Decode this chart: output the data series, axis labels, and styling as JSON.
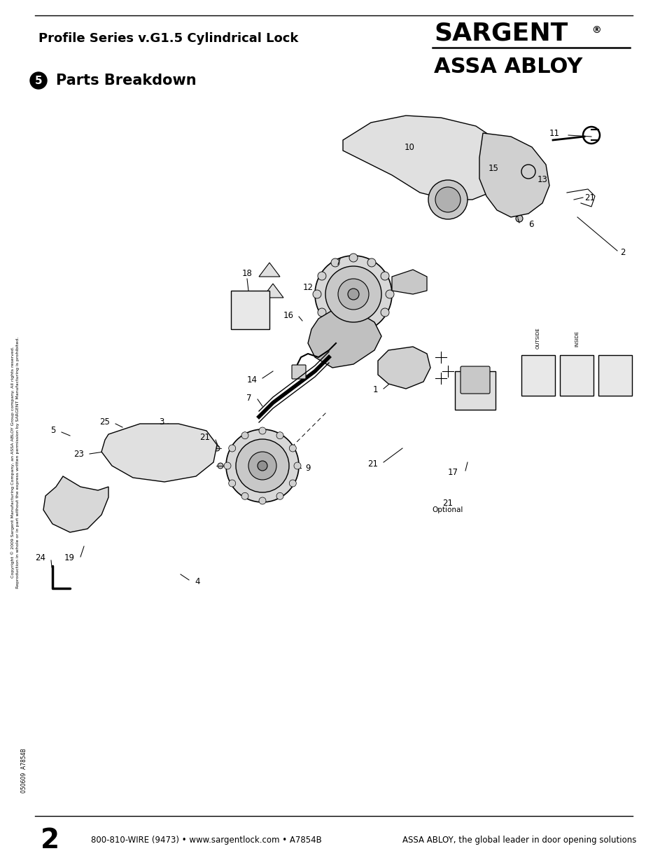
{
  "title": "Profile Series v.G1.5 Cylindrical Lock",
  "section_num": "5",
  "section_title": "Parts Breakdown",
  "brand_name": "SARGENT",
  "brand_registered": "®",
  "sub_brand": "ASSA ABLOY",
  "footer_page": "2",
  "footer_contact": "800-810-WIRE (9473) • www.sargentlock.com • A7854B",
  "footer_tagline": "ASSA ABLOY, the global leader in door opening solutions",
  "footer_doc": "050609  A7854B",
  "copyright_line1": "Copyright © 2009 Sargent Manufacturing Company, an ASSA ABLOY Group company. All rights reserved.",
  "copyright_line2": "Reproduction in whole or in part without the express written permission by SARGENT Manufacturing is prohibited.",
  "bg_color": "#ffffff",
  "text_color": "#000000"
}
